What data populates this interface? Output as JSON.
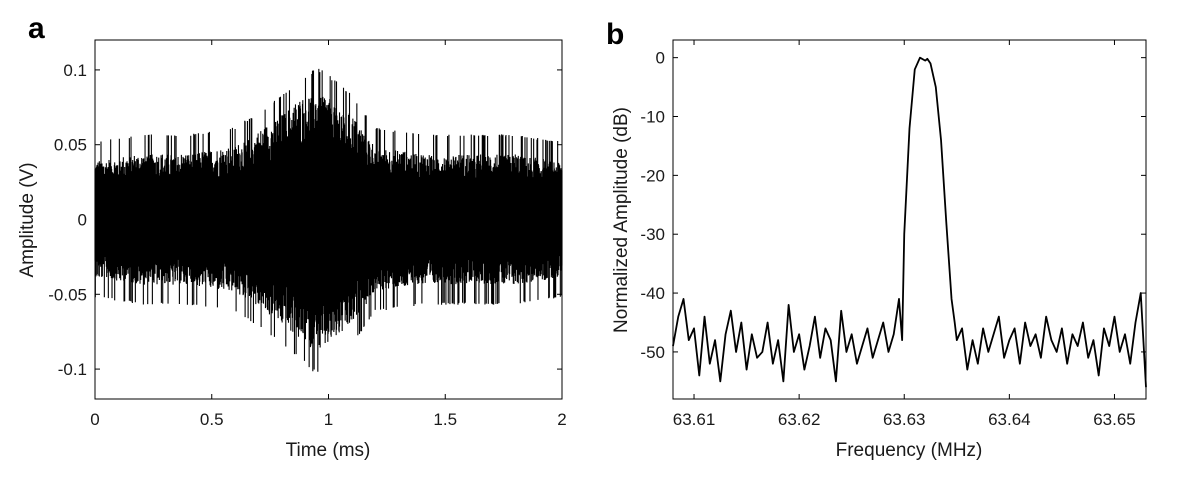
{
  "chart_data": [
    {
      "panel_label": "a",
      "type": "line",
      "title": "",
      "xlabel": "Time (ms)",
      "ylabel": "Amplitude (V)",
      "xlim": [
        0,
        2
      ],
      "ylim": [
        -0.12,
        0.12
      ],
      "xticks": [
        0,
        0.5,
        1,
        1.5,
        2
      ],
      "xtick_labels": [
        "0",
        "0.5",
        "1",
        "1.5",
        "2"
      ],
      "yticks": [
        -0.1,
        -0.05,
        0,
        0.05,
        0.1
      ],
      "ytick_labels": [
        "-0.1",
        "-0.05",
        "0",
        "0.05",
        "0.1"
      ],
      "grid": false,
      "line_color": "#000000",
      "signal": {
        "description": "dense oscillating signal with envelope",
        "noise_floor_amplitude": 0.027,
        "peak_envelope_amplitude": 0.085,
        "peak_center_ms": 0.94,
        "peak_width_ms": 0.2,
        "envelope_points": {
          "x": [
            0,
            0.2,
            0.4,
            0.6,
            0.7,
            0.8,
            0.9,
            0.95,
            1.0,
            1.1,
            1.2,
            1.4,
            1.6,
            1.8,
            2.0
          ],
          "upper": [
            0.04,
            0.045,
            0.045,
            0.05,
            0.06,
            0.072,
            0.085,
            0.09,
            0.085,
            0.072,
            0.05,
            0.045,
            0.045,
            0.045,
            0.04
          ],
          "lower": [
            -0.04,
            -0.045,
            -0.045,
            -0.05,
            -0.06,
            -0.072,
            -0.085,
            -0.092,
            -0.085,
            -0.072,
            -0.05,
            -0.045,
            -0.045,
            -0.045,
            -0.04
          ]
        }
      }
    },
    {
      "panel_label": "b",
      "type": "line",
      "title": "",
      "xlabel": "Frequency (MHz)",
      "ylabel": "Normalized Amplitude (dB)",
      "xlim": [
        63.608,
        63.653
      ],
      "ylim": [
        -58,
        3
      ],
      "xticks": [
        63.61,
        63.62,
        63.63,
        63.64,
        63.65
      ],
      "xtick_labels": [
        "63.61",
        "63.62",
        "63.63",
        "63.64",
        "63.65"
      ],
      "yticks": [
        -50,
        -40,
        -30,
        -20,
        -10,
        0
      ],
      "ytick_labels": [
        "-50",
        "-40",
        "-30",
        "-20",
        "-10",
        "0"
      ],
      "grid": false,
      "line_color": "#000000",
      "series": [
        {
          "x": [
            63.608,
            63.6085,
            63.609,
            63.6095,
            63.61,
            63.6105,
            63.611,
            63.6115,
            63.612,
            63.6125,
            63.613,
            63.6135,
            63.614,
            63.6145,
            63.615,
            63.6155,
            63.616,
            63.6165,
            63.617,
            63.6175,
            63.618,
            63.6185,
            63.619,
            63.6195,
            63.62,
            63.6205,
            63.621,
            63.6215,
            63.622,
            63.6225,
            63.623,
            63.6235,
            63.624,
            63.6245,
            63.625,
            63.6255,
            63.626,
            63.6265,
            63.627,
            63.6275,
            63.628,
            63.6285,
            63.629,
            63.6295,
            63.6298,
            63.63,
            63.6305,
            63.631,
            63.6315,
            63.632,
            63.6322,
            63.6325,
            63.633,
            63.6335,
            63.634,
            63.6345,
            63.6348,
            63.635,
            63.6355,
            63.636,
            63.6365,
            63.637,
            63.6375,
            63.638,
            63.6385,
            63.639,
            63.6395,
            63.64,
            63.6405,
            63.641,
            63.6415,
            63.642,
            63.6425,
            63.643,
            63.6435,
            63.644,
            63.6445,
            63.645,
            63.6455,
            63.646,
            63.6465,
            63.647,
            63.6475,
            63.648,
            63.6485,
            63.649,
            63.6495,
            63.65,
            63.6505,
            63.651,
            63.6515,
            63.652,
            63.6525,
            63.653
          ],
          "values": [
            -49,
            -44,
            -41,
            -48,
            -46,
            -54,
            -44,
            -52,
            -48,
            -55,
            -47,
            -43,
            -50,
            -45,
            -53,
            -47,
            -51,
            -50,
            -45,
            -52,
            -48,
            -55,
            -42,
            -50,
            -47,
            -53,
            -49,
            -44,
            -51,
            -46,
            -48,
            -55,
            -43,
            -50,
            -47,
            -52,
            -49,
            -46,
            -51,
            -48,
            -45,
            -50,
            -47,
            -41,
            -48,
            -30,
            -12,
            -2,
            0,
            -0.5,
            -0.2,
            -1,
            -5,
            -14,
            -28,
            -41,
            -45,
            -48,
            -46,
            -53,
            -48,
            -52,
            -46,
            -50,
            -47,
            -44,
            -51,
            -48,
            -46,
            -52,
            -45,
            -49,
            -47,
            -51,
            -44,
            -48,
            -50,
            -46,
            -52,
            -47,
            -49,
            -45,
            -51,
            -48,
            -54,
            -46,
            -49,
            -44,
            -50,
            -47,
            -52,
            -45,
            -40,
            -56
          ]
        }
      ]
    }
  ]
}
